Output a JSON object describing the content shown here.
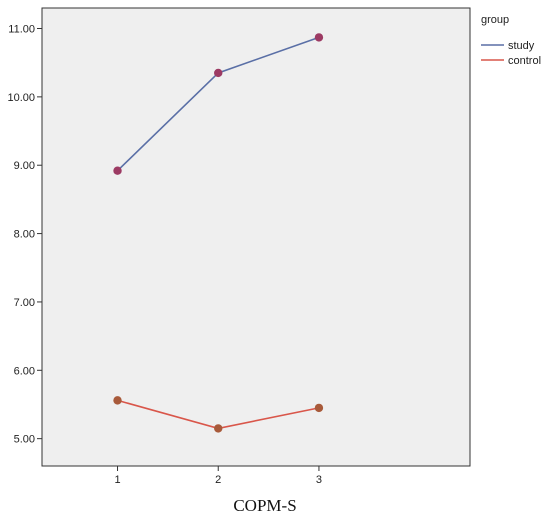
{
  "chart_data": {
    "type": "line",
    "x": [
      1,
      2,
      3
    ],
    "x_tick_labels": [
      "1",
      "2",
      "3"
    ],
    "y_tick_labels": [
      "5.00",
      "6.00",
      "7.00",
      "8.00",
      "9.00",
      "10.00",
      "11.00"
    ],
    "y_ticks": [
      5,
      6,
      7,
      8,
      9,
      10,
      11
    ],
    "ylim": [
      4.6,
      11.3
    ],
    "xlim": [
      0.25,
      4.5
    ],
    "grid": false,
    "legend": {
      "title": "group",
      "placement": "top-right"
    },
    "series": [
      {
        "name": "study",
        "values": [
          8.92,
          10.35,
          10.87
        ],
        "line_color": "#5a6fa6",
        "marker_color": "#9c3a63"
      },
      {
        "name": "control",
        "values": [
          5.56,
          5.15,
          5.45
        ],
        "line_color": "#d9564a",
        "marker_color": "#a85a3a"
      }
    ],
    "caption": "COPM-S"
  },
  "colors": {
    "plot_background": "#efefef",
    "axis": "#333333"
  }
}
